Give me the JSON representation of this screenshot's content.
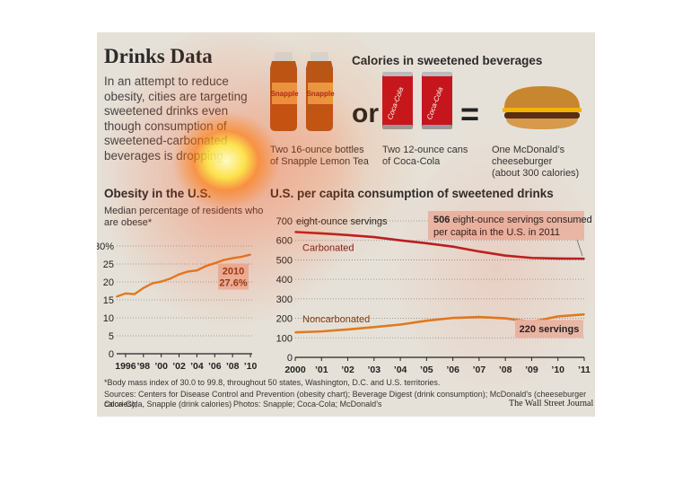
{
  "header": {
    "title": "Drinks Data",
    "intro": "In an attempt to reduce obesity, cities are targeting sweetened drinks even though consumption of sweetened-carbonated beverages is dropping."
  },
  "calories": {
    "heading": "Calories in sweetened beverages",
    "or_word": "or",
    "equals": "=",
    "items": [
      {
        "caption_line1": "Two 16-ounce bottles",
        "caption_line2": "of Snapple Lemon Tea",
        "brand": "Snapple"
      },
      {
        "caption_line1": "Two 12-ounce cans",
        "caption_line2": "of Coca-Cola",
        "brand": "Coca-Cola"
      },
      {
        "caption_line1": "One McDonald’s",
        "caption_line2": "cheeseburger",
        "caption_line3": "(about 300 calories)"
      }
    ]
  },
  "chart_data": [
    {
      "type": "line",
      "title": "Obesity in the U.S.",
      "subtitle": "Median percentage of residents who are obese*",
      "x": [
        1995,
        1996,
        1997,
        1998,
        1999,
        2000,
        2001,
        2002,
        2003,
        2004,
        2005,
        2006,
        2007,
        2008,
        2009,
        2010
      ],
      "series": [
        {
          "values": [
            15.9,
            16.8,
            16.6,
            18.3,
            19.6,
            20.1,
            20.9,
            22.1,
            22.9,
            23.2,
            24.4,
            25.2,
            26.1,
            26.6,
            27.0,
            27.6
          ],
          "color": "#e07a20"
        }
      ],
      "xticks": [
        "1996",
        "’98",
        "’00",
        "’02",
        "’04",
        "’06",
        "’08",
        "’10"
      ],
      "xtick_values": [
        1996,
        1998,
        2000,
        2002,
        2004,
        2006,
        2008,
        2010
      ],
      "yticks": [
        "0",
        "5",
        "10",
        "15",
        "20",
        "25",
        "30%"
      ],
      "ytick_values": [
        0,
        5,
        10,
        15,
        20,
        25,
        30
      ],
      "ylim": [
        0,
        31
      ],
      "xlim": [
        1995,
        2010.2
      ],
      "annotation": {
        "year": "2010",
        "value": "27.6%"
      }
    },
    {
      "type": "line",
      "title": "U.S. per capita consumption of sweetened drinks",
      "ylabel": "eight-ounce servings",
      "x": [
        2000,
        2001,
        2002,
        2003,
        2004,
        2005,
        2006,
        2007,
        2008,
        2009,
        2010,
        2011
      ],
      "series": [
        {
          "name": "Carbonated",
          "values": [
            643,
            636,
            627,
            617,
            600,
            585,
            568,
            543,
            522,
            510,
            507,
            506
          ],
          "color": "#b52020"
        },
        {
          "name": "Noncarbonated",
          "values": [
            128,
            133,
            143,
            155,
            168,
            188,
            202,
            207,
            200,
            182,
            210,
            220
          ],
          "color": "#e07a20"
        }
      ],
      "xticks": [
        "2000",
        "’01",
        "’02",
        "’03",
        "’04",
        "’05",
        "’06",
        "’07",
        "’08",
        "’09",
        "’10",
        "’11"
      ],
      "yticks": [
        "0",
        "100",
        "200",
        "300",
        "400",
        "500",
        "600",
        "700"
      ],
      "ytick_values": [
        0,
        100,
        200,
        300,
        400,
        500,
        600,
        700
      ],
      "ylim": [
        0,
        700
      ],
      "annotations": {
        "carbonated_bold": "506",
        "carbonated_text": "eight-ounce servings consumed per capita in the U.S. in 2011",
        "noncarbonated": "220 servings"
      }
    }
  ],
  "footer": {
    "footnote": "*Body mass index of 30.0 to 99.8, throughout 50 states, Washington, D.C. and U.S. territories.",
    "sources_line1": "Sources: Centers for Disease Control and Prevention (obesity chart); Beverage Digest (drink consumption); McDonald’s (cheeseburger calories);",
    "sources_line2": "Coca-Cola, Snapple (drink calories)",
    "photos": "Photos: Snapple; Coca-Cola; McDonald’s",
    "publisher": "The Wall Street Journal"
  },
  "colors": {
    "background": "#e6e1d8",
    "carbonated": "#b52020",
    "noncarbonated": "#e07a20",
    "obesity": "#e07a20",
    "label_box": "#e8b9a8"
  }
}
